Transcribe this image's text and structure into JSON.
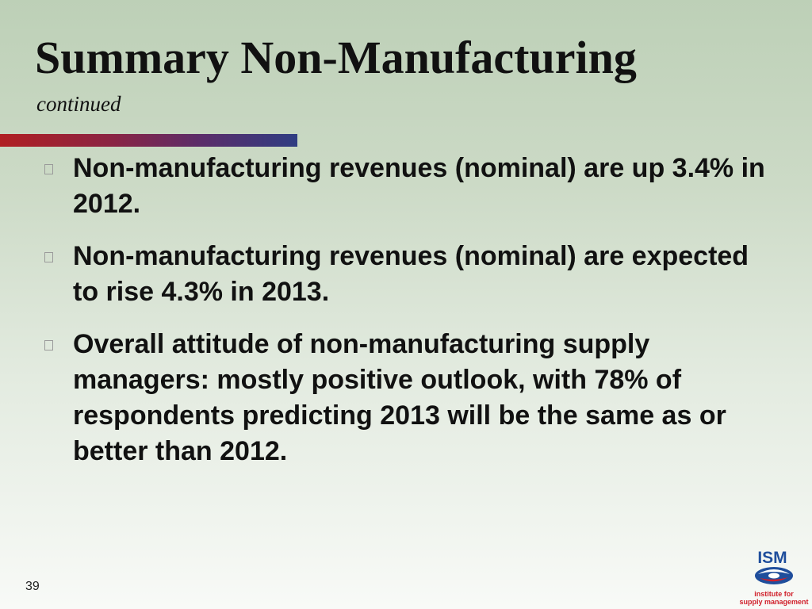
{
  "slide": {
    "title": "Summary Non-Manufacturing",
    "subtitle": "continued",
    "bullets": [
      "Non-manufacturing revenues (nominal) are up 3.4% in 2012.",
      "Non-manufacturing revenues (nominal) are expected to rise 4.3% in 2013.",
      "Overall attitude of non-manufacturing supply managers: mostly positive outlook, with 78% of respondents predicting 2013 will be the same as or better than 2012."
    ],
    "page_number": "39"
  },
  "logo": {
    "wordmark": "ISM",
    "tagline_line1": "institute for",
    "tagline_line2": "supply management"
  },
  "colors": {
    "rule_start": "#b01f22",
    "rule_end": "#2f3d82",
    "logo_blue": "#1f4e9c",
    "logo_red": "#d01f2a"
  }
}
